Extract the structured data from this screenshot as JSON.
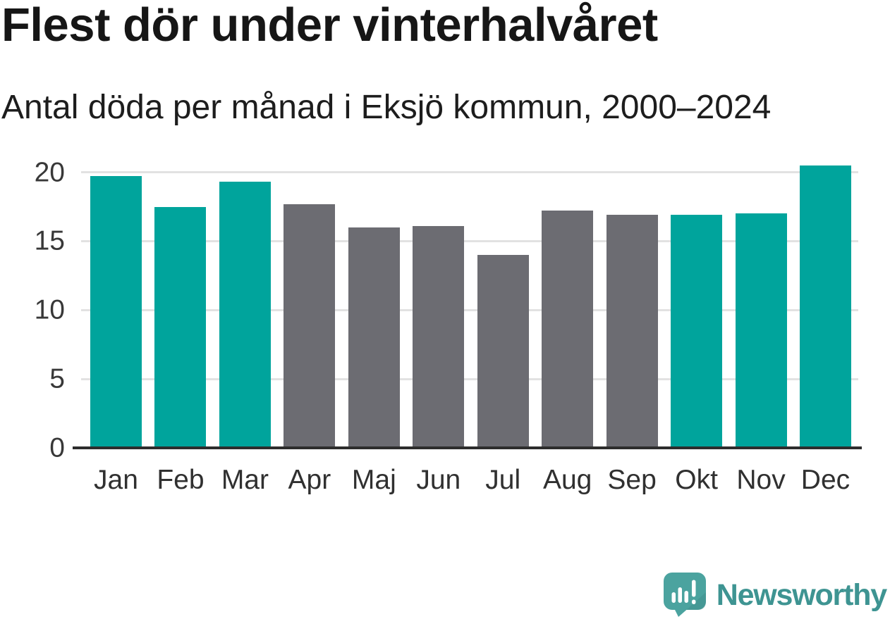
{
  "title": "Flest dör under vinterhalvåret",
  "subtitle": "Antal döda per månad i Eksjö kommun, 2000–2024",
  "branding": {
    "logo_text": "Newsworthy",
    "logo_icon": "speech-bubble-with-bar-chart-and-exclamation"
  },
  "colors": {
    "winter_bar_teal": "#00a49c",
    "summer_bar_gray": "#6c6c72",
    "logo_bubble_teal": "#4ba39f",
    "logo_text_teal": "#3e9492",
    "axis_text": "#383838",
    "gridline": "#e2e2e2",
    "baseline": "#2d2d2d"
  },
  "chart_data": {
    "type": "bar",
    "title": "Flest dör under vinterhalvåret",
    "subtitle": "Antal döda per månad i Eksjö kommun, 2000–2024",
    "categories": [
      "Jan",
      "Feb",
      "Mar",
      "Apr",
      "Maj",
      "Jun",
      "Jul",
      "Aug",
      "Sep",
      "Okt",
      "Nov",
      "Dec"
    ],
    "values": [
      19.7,
      17.5,
      19.3,
      17.7,
      16.0,
      16.1,
      14.0,
      17.2,
      16.9,
      16.9,
      17.0,
      20.5
    ],
    "bar_colors": [
      "#00a49c",
      "#00a49c",
      "#00a49c",
      "#6c6c72",
      "#6c6c72",
      "#6c6c72",
      "#6c6c72",
      "#6c6c72",
      "#6c6c72",
      "#00a49c",
      "#00a49c",
      "#00a49c"
    ],
    "highlight_meaning": "teal bars = winter half-year months (Okt–Mar), gray bars = summer half-year months (Apr–Sep)",
    "xlabel": "",
    "ylabel": "",
    "yticks": [
      0,
      5,
      10,
      15,
      20
    ],
    "ylim": [
      0,
      21
    ],
    "grid": "horizontal",
    "legend": "none"
  }
}
